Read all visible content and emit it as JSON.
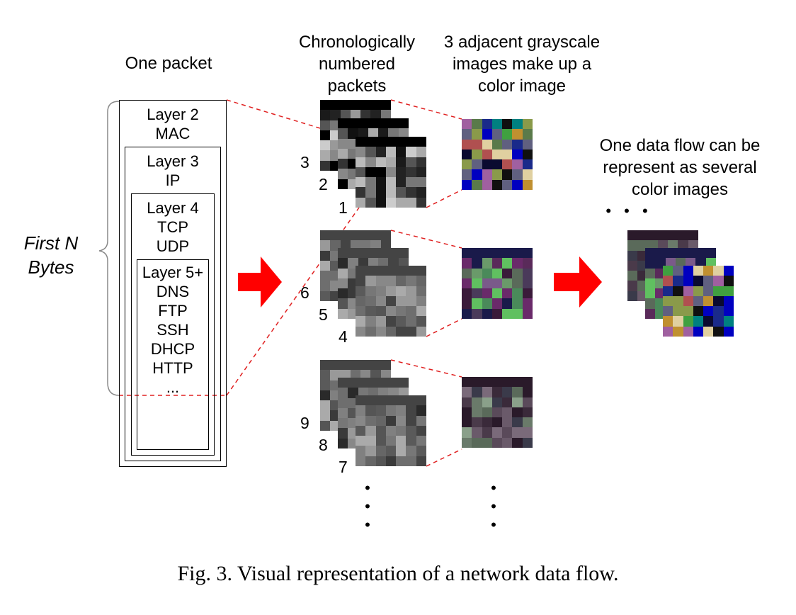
{
  "labels": {
    "one_packet": "One packet",
    "chrono": "Chronologically\nnumbered\npackets",
    "adjacent": "3 adjacent grayscale\nimages make up a\ncolor image",
    "flow": "One data flow can be\nrepresent as several\ncolor images",
    "first_n": "First N\nBytes",
    "ellipsis_dots": "• • •",
    "vertical_dots_1": "•\n•\n•",
    "vertical_dots_2": "•\n•\n•"
  },
  "layers": [
    {
      "text": "Layer 2\nMAC"
    },
    {
      "text": "Layer 3\nIP"
    },
    {
      "text": "Layer 4\nTCP\nUDP"
    },
    {
      "text": "Layer 5+\nDNS\nFTP\nSSH\nDHCP\nHTTP\n..."
    }
  ],
  "packet_numbers": [
    "3",
    "2",
    "1",
    "6",
    "5",
    "4",
    "9",
    "8",
    "7"
  ],
  "caption": "Fig. 3.    Visual representation of a network data flow.",
  "colors": {
    "arrow": "#ff0000",
    "dashed_line": "#e02020",
    "line": "#000000"
  },
  "icons": [
    "right-arrow-icon",
    "right-arrow-icon"
  ]
}
